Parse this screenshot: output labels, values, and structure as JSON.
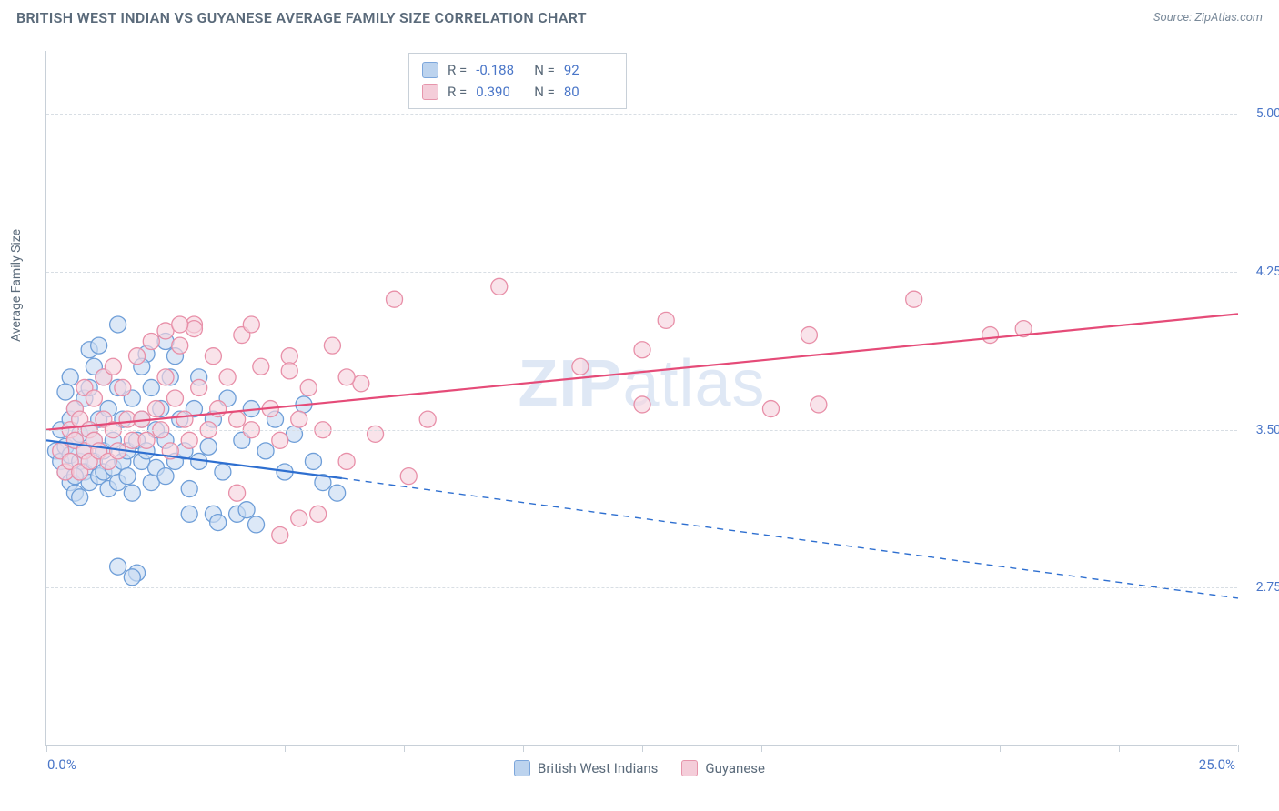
{
  "header": {
    "title": "BRITISH WEST INDIAN VS GUYANESE AVERAGE FAMILY SIZE CORRELATION CHART",
    "source": "Source: ZipAtlas.com"
  },
  "watermark": {
    "part1": "ZIP",
    "part2": "atlas"
  },
  "chart": {
    "type": "scatter",
    "background_color": "#ffffff",
    "grid_color": "#d8dee4",
    "axis_color": "#c8d0d8",
    "tick_label_color": "#4a76c8",
    "axis_title_color": "#5a6a7a",
    "y_axis_title": "Average Family Size",
    "xlim": [
      0,
      25
    ],
    "ylim": [
      2.0,
      5.3
    ],
    "x_ticks": [
      0,
      2.5,
      5,
      7.5,
      10,
      12.5,
      15,
      17.5,
      20,
      22.5,
      25
    ],
    "x_labels": {
      "min": "0.0%",
      "max": "25.0%"
    },
    "y_ticks": [
      2.75,
      3.5,
      4.25,
      5.0
    ],
    "y_tick_labels": [
      "2.75",
      "3.50",
      "4.25",
      "5.00"
    ],
    "marker_radius": 9,
    "marker_stroke_width": 1.3,
    "trendline_width": 2.2,
    "series": [
      {
        "name": "British West Indians",
        "fill": "#c9dcf2",
        "stroke": "#6e9ed8",
        "swatch_fill": "#bcd3ee",
        "swatch_stroke": "#7ca6db",
        "trend_color": "#2e6fd0",
        "trend": {
          "x1": 0,
          "y1": 3.45,
          "x2_solid": 6.2,
          "y2_solid": 3.27,
          "x2": 25,
          "y2": 2.7
        },
        "stats": {
          "R": "-0.188",
          "N": "92"
        },
        "points": [
          [
            0.2,
            3.4
          ],
          [
            0.3,
            3.35
          ],
          [
            0.3,
            3.5
          ],
          [
            0.4,
            3.3
          ],
          [
            0.4,
            3.42
          ],
          [
            0.5,
            3.25
          ],
          [
            0.5,
            3.55
          ],
          [
            0.5,
            3.38
          ],
          [
            0.6,
            3.2
          ],
          [
            0.6,
            3.6
          ],
          [
            0.6,
            3.45
          ],
          [
            0.7,
            3.35
          ],
          [
            0.7,
            3.48
          ],
          [
            0.8,
            3.3
          ],
          [
            0.8,
            3.65
          ],
          [
            0.8,
            3.4
          ],
          [
            0.9,
            3.25
          ],
          [
            0.9,
            3.7
          ],
          [
            0.9,
            3.5
          ],
          [
            1.0,
            3.35
          ],
          [
            1.0,
            3.8
          ],
          [
            1.0,
            3.45
          ],
          [
            1.1,
            3.28
          ],
          [
            1.1,
            3.55
          ],
          [
            1.2,
            3.4
          ],
          [
            1.2,
            3.75
          ],
          [
            1.2,
            3.3
          ],
          [
            1.3,
            3.22
          ],
          [
            1.3,
            3.6
          ],
          [
            1.4,
            3.45
          ],
          [
            1.4,
            3.32
          ],
          [
            1.5,
            3.7
          ],
          [
            1.5,
            3.25
          ],
          [
            1.5,
            4.0
          ],
          [
            1.6,
            3.35
          ],
          [
            1.6,
            3.55
          ],
          [
            1.7,
            3.4
          ],
          [
            1.7,
            3.28
          ],
          [
            1.8,
            3.65
          ],
          [
            1.8,
            3.2
          ],
          [
            1.9,
            3.45
          ],
          [
            1.9,
            2.82
          ],
          [
            2.0,
            3.55
          ],
          [
            2.0,
            3.35
          ],
          [
            2.1,
            3.4
          ],
          [
            2.2,
            3.25
          ],
          [
            2.2,
            3.7
          ],
          [
            2.3,
            3.5
          ],
          [
            2.3,
            3.32
          ],
          [
            2.4,
            3.6
          ],
          [
            2.5,
            3.28
          ],
          [
            2.5,
            3.45
          ],
          [
            2.6,
            3.75
          ],
          [
            2.7,
            3.35
          ],
          [
            2.8,
            3.55
          ],
          [
            2.9,
            3.4
          ],
          [
            3.0,
            3.22
          ],
          [
            3.0,
            3.1
          ],
          [
            3.1,
            3.6
          ],
          [
            3.2,
            3.35
          ],
          [
            3.2,
            3.75
          ],
          [
            3.4,
            3.42
          ],
          [
            3.5,
            3.1
          ],
          [
            3.5,
            3.55
          ],
          [
            3.7,
            3.3
          ],
          [
            3.8,
            3.65
          ],
          [
            4.0,
            3.1
          ],
          [
            4.1,
            3.45
          ],
          [
            4.3,
            3.6
          ],
          [
            4.4,
            3.05
          ],
          [
            4.6,
            3.4
          ],
          [
            4.8,
            3.55
          ],
          [
            5.0,
            3.3
          ],
          [
            5.2,
            3.48
          ],
          [
            5.4,
            3.62
          ],
          [
            5.6,
            3.35
          ],
          [
            5.8,
            3.25
          ],
          [
            6.1,
            3.2
          ],
          [
            1.5,
            2.85
          ],
          [
            1.8,
            2.8
          ],
          [
            2.1,
            3.86
          ],
          [
            2.5,
            3.92
          ],
          [
            0.9,
            3.88
          ],
          [
            0.5,
            3.75
          ],
          [
            0.4,
            3.68
          ],
          [
            0.6,
            3.28
          ],
          [
            0.7,
            3.18
          ],
          [
            1.1,
            3.9
          ],
          [
            4.2,
            3.12
          ],
          [
            3.6,
            3.06
          ],
          [
            2.0,
            3.8
          ],
          [
            2.7,
            3.85
          ]
        ]
      },
      {
        "name": "Guyanese",
        "fill": "#f6d4de",
        "stroke": "#e88fa8",
        "swatch_fill": "#f4cdd9",
        "swatch_stroke": "#e695ab",
        "trend_color": "#e54b78",
        "trend": {
          "x1": 0,
          "y1": 3.5,
          "x2_solid": 25,
          "y2_solid": 4.05,
          "x2": 25,
          "y2": 4.05
        },
        "stats": {
          "R": "0.390",
          "N": "80"
        },
        "points": [
          [
            0.3,
            3.4
          ],
          [
            0.4,
            3.3
          ],
          [
            0.5,
            3.5
          ],
          [
            0.5,
            3.35
          ],
          [
            0.6,
            3.45
          ],
          [
            0.6,
            3.6
          ],
          [
            0.7,
            3.3
          ],
          [
            0.7,
            3.55
          ],
          [
            0.8,
            3.4
          ],
          [
            0.8,
            3.7
          ],
          [
            0.9,
            3.5
          ],
          [
            0.9,
            3.35
          ],
          [
            1.0,
            3.65
          ],
          [
            1.0,
            3.45
          ],
          [
            1.1,
            3.4
          ],
          [
            1.2,
            3.75
          ],
          [
            1.2,
            3.55
          ],
          [
            1.3,
            3.35
          ],
          [
            1.4,
            3.8
          ],
          [
            1.4,
            3.5
          ],
          [
            1.5,
            3.4
          ],
          [
            1.6,
            3.7
          ],
          [
            1.7,
            3.55
          ],
          [
            1.8,
            3.45
          ],
          [
            1.9,
            3.85
          ],
          [
            2.0,
            3.55
          ],
          [
            2.1,
            3.45
          ],
          [
            2.2,
            3.92
          ],
          [
            2.3,
            3.6
          ],
          [
            2.4,
            3.5
          ],
          [
            2.5,
            3.75
          ],
          [
            2.6,
            3.4
          ],
          [
            2.7,
            3.65
          ],
          [
            2.8,
            3.9
          ],
          [
            2.9,
            3.55
          ],
          [
            3.0,
            3.45
          ],
          [
            3.1,
            4.0
          ],
          [
            3.2,
            3.7
          ],
          [
            3.4,
            3.5
          ],
          [
            3.5,
            3.85
          ],
          [
            3.6,
            3.6
          ],
          [
            3.8,
            3.75
          ],
          [
            4.0,
            3.55
          ],
          [
            4.1,
            3.95
          ],
          [
            4.3,
            3.5
          ],
          [
            4.5,
            3.8
          ],
          [
            4.7,
            3.6
          ],
          [
            4.9,
            3.45
          ],
          [
            5.1,
            3.85
          ],
          [
            5.3,
            3.55
          ],
          [
            5.5,
            3.7
          ],
          [
            5.8,
            3.5
          ],
          [
            6.0,
            3.9
          ],
          [
            6.3,
            3.35
          ],
          [
            6.6,
            3.72
          ],
          [
            6.9,
            3.48
          ],
          [
            7.3,
            4.12
          ],
          [
            7.6,
            3.28
          ],
          [
            8.0,
            3.55
          ],
          [
            5.3,
            3.08
          ],
          [
            4.9,
            3.0
          ],
          [
            6.3,
            3.75
          ],
          [
            5.1,
            3.78
          ],
          [
            3.1,
            3.98
          ],
          [
            4.3,
            4.0
          ],
          [
            2.5,
            3.97
          ],
          [
            2.8,
            4.0
          ],
          [
            9.5,
            4.18
          ],
          [
            11.2,
            3.8
          ],
          [
            12.5,
            3.88
          ],
          [
            12.5,
            3.62
          ],
          [
            13.0,
            4.02
          ],
          [
            15.2,
            3.6
          ],
          [
            16.0,
            3.95
          ],
          [
            16.2,
            3.62
          ],
          [
            18.2,
            4.12
          ],
          [
            19.8,
            3.95
          ],
          [
            20.5,
            3.98
          ],
          [
            5.7,
            3.1
          ],
          [
            4.0,
            3.2
          ]
        ]
      }
    ]
  },
  "stats_legend": {
    "R_label": "R =",
    "N_label": "N ="
  },
  "bottom_legend": {
    "items": [
      "British West Indians",
      "Guyanese"
    ]
  }
}
